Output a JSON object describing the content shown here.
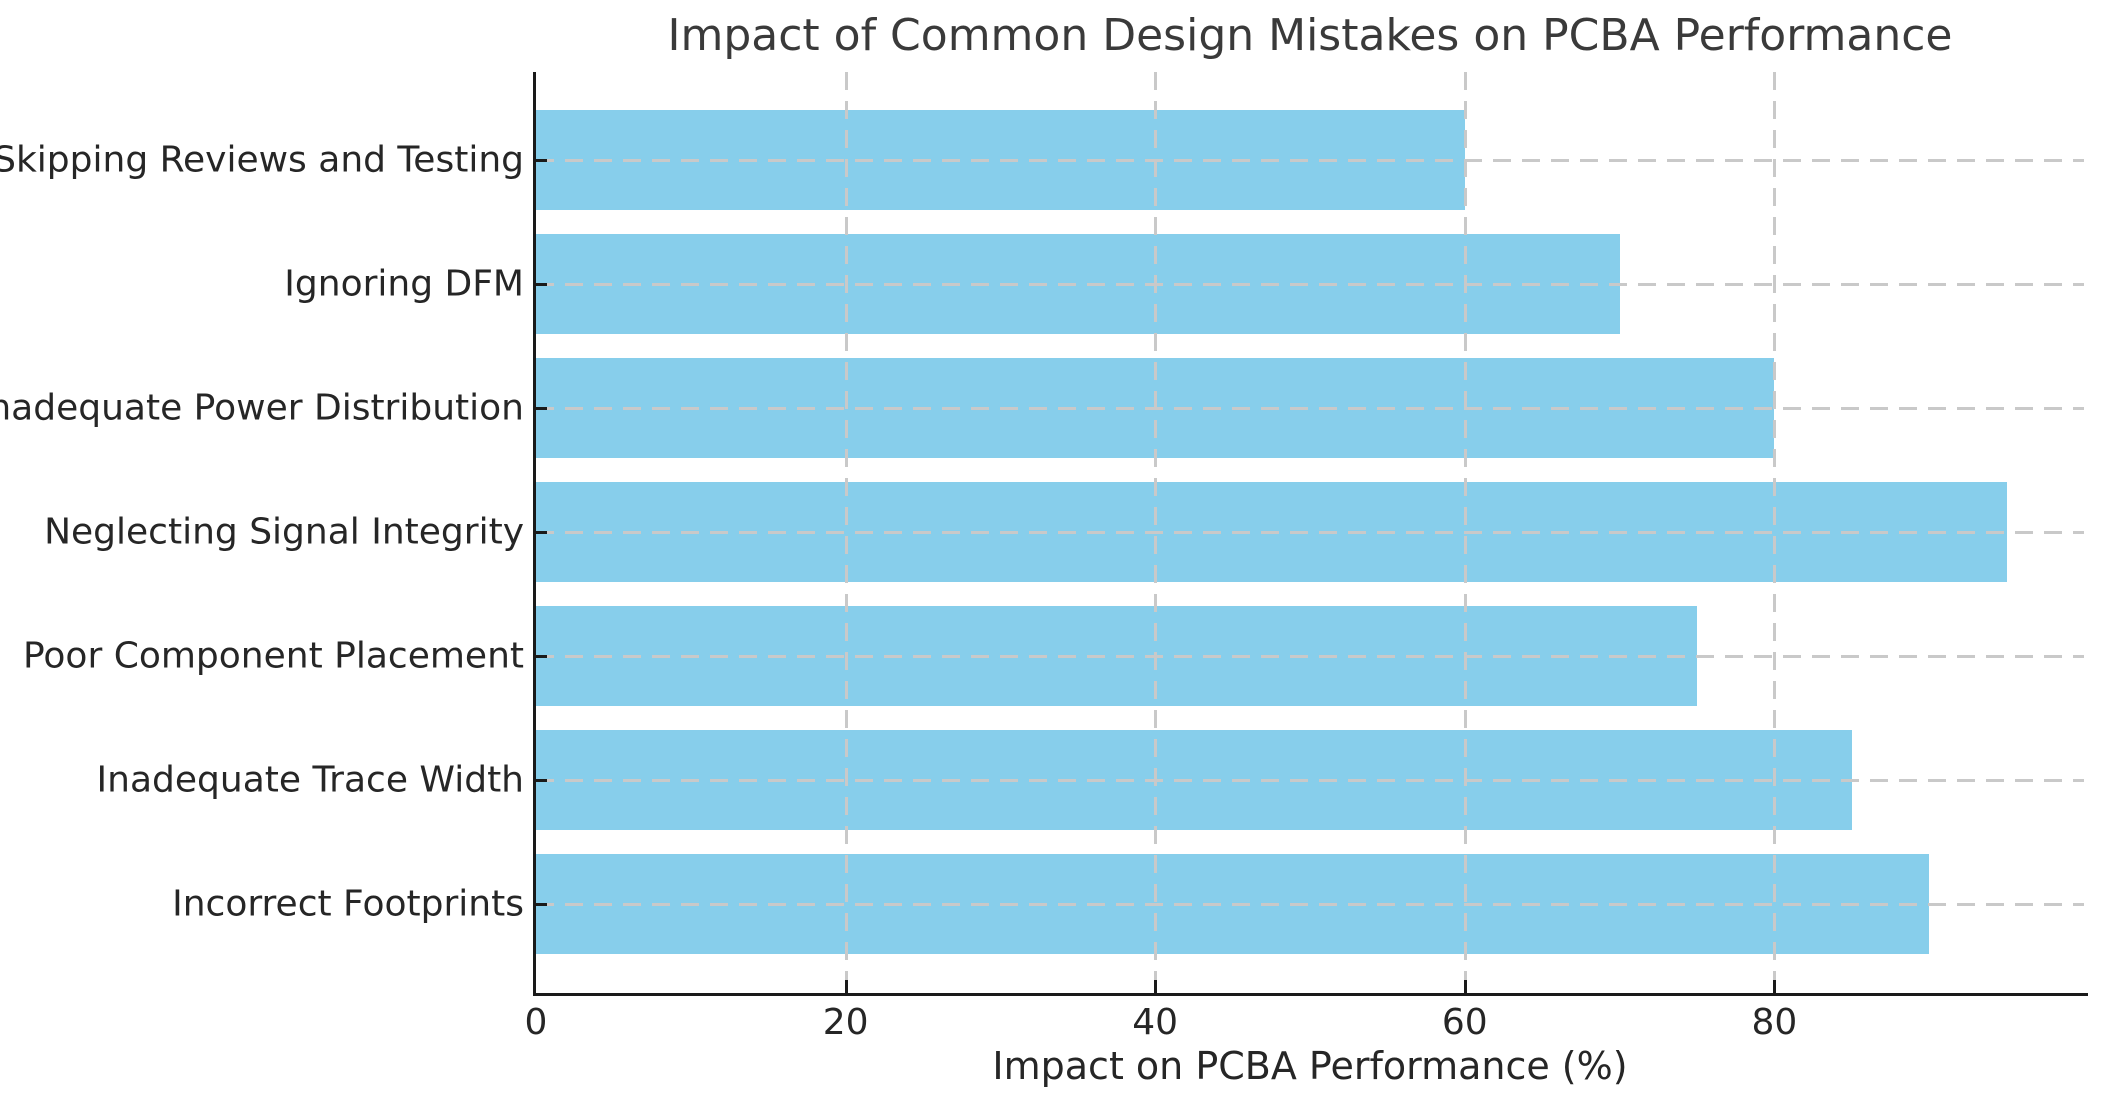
{
  "chart_data": {
    "type": "bar",
    "orientation": "horizontal",
    "title": "Impact of Common Design Mistakes on PCBA Performance",
    "xlabel": "Impact on PCBA Performance (%)",
    "ylabel": "",
    "categories": [
      "Skipping Reviews and Testing",
      "Ignoring DFM",
      "Inadequate Power Distribution",
      "Neglecting Signal Integrity",
      "Poor Component Placement",
      "Inadequate Trace Width",
      "Incorrect Footprints"
    ],
    "values": [
      60,
      70,
      80,
      95,
      75,
      85,
      90
    ],
    "xlim": [
      0,
      100
    ],
    "xticks": [
      0,
      20,
      40,
      60,
      80
    ],
    "grid": "dashed, drawn above bars, horizontal at category centers and vertical at x ticks",
    "legend": "none",
    "colors": {
      "bar": "#87CEEB",
      "grid": "#c9c9c9",
      "spine": "#1a1a1a",
      "text": "#262626",
      "title": "#3a3a3a",
      "background": "#ffffff"
    }
  }
}
